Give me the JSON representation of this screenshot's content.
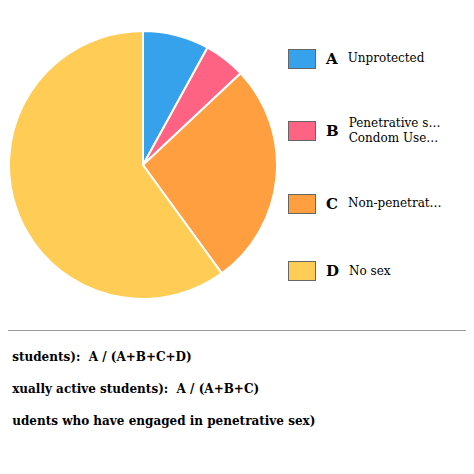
{
  "chart_data": {
    "type": "pie",
    "categories": [
      "A",
      "B",
      "C",
      "D"
    ],
    "values": [
      8,
      5,
      27,
      60
    ],
    "legend_labels": [
      "Unprotected",
      "Penetrative s…\nCondom Use…",
      "Non-penetrat…",
      "No sex"
    ],
    "legend": "right",
    "annotations": [
      " students):  A / (A+B+C+D)",
      " xually active students):  A / (A+B+C)",
      " udents who have engaged in penetrative sex)"
    ]
  }
}
